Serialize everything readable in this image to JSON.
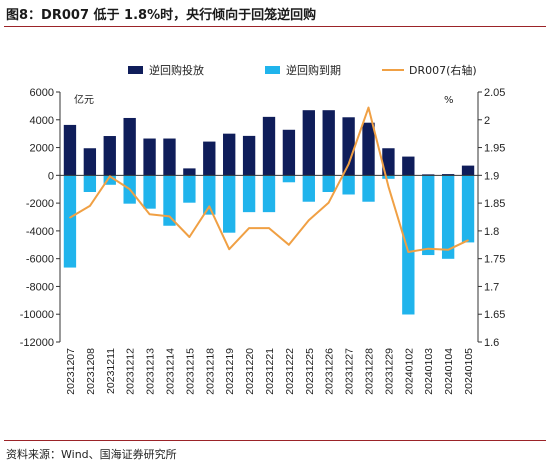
{
  "figure": {
    "title": "图8：DR007 低于 1.8%时，央行倾向于回笼逆回购",
    "source": "资料来源：Wind、国海证券研究所"
  },
  "chart_data": {
    "type": "bar",
    "title": "DR007 低于 1.8%时，央行倾向于回笼逆回购",
    "categories": [
      "20231207",
      "20231208",
      "20231211",
      "20231212",
      "20231213",
      "20231214",
      "20231215",
      "20231218",
      "20231219",
      "20231220",
      "20231221",
      "20231222",
      "20231225",
      "20231226",
      "20231227",
      "20231228",
      "20231229",
      "20240102",
      "20240103",
      "20240104",
      "20240105"
    ],
    "series": [
      {
        "name": "逆回购投放",
        "kind": "bar",
        "axis": "left",
        "color": "#0f1d5a",
        "values": [
          3630,
          1950,
          2830,
          4130,
          2650,
          2650,
          500,
          2430,
          3000,
          2840,
          4210,
          3280,
          4690,
          4690,
          4180,
          3790,
          1950,
          1350,
          70,
          90,
          700
        ]
      },
      {
        "name": "逆回购到期",
        "kind": "bar",
        "axis": "left",
        "color": "#20b4ec",
        "values": [
          -6640,
          -1200,
          -680,
          -2040,
          -2400,
          -3630,
          -1970,
          -2830,
          -4130,
          -2650,
          -2650,
          -500,
          -1900,
          -1200,
          -1380,
          -1900,
          -250,
          -10020,
          -5740,
          -6010,
          -4830
        ]
      },
      {
        "name": "DR007(右轴)",
        "kind": "line",
        "axis": "right",
        "color": "#f0a044",
        "values": [
          1.824,
          1.845,
          1.898,
          1.875,
          1.83,
          1.826,
          1.789,
          1.844,
          1.767,
          1.805,
          1.805,
          1.775,
          1.819,
          1.851,
          1.92,
          2.022,
          1.88,
          1.762,
          1.768,
          1.766,
          1.783
        ]
      }
    ],
    "y_left": {
      "unit": "亿元",
      "ylim": [
        -12000,
        6000
      ],
      "ticks": [
        6000,
        4000,
        2000,
        0,
        -2000,
        -4000,
        -6000,
        -8000,
        -10000,
        -12000
      ]
    },
    "y_right": {
      "unit": "%",
      "ylim": [
        1.6,
        2.05
      ],
      "ticks": [
        2.05,
        2.0,
        1.95,
        1.9,
        1.85,
        1.8,
        1.75,
        1.7,
        1.65,
        1.6
      ]
    },
    "grid": false,
    "legend_position": "top"
  }
}
